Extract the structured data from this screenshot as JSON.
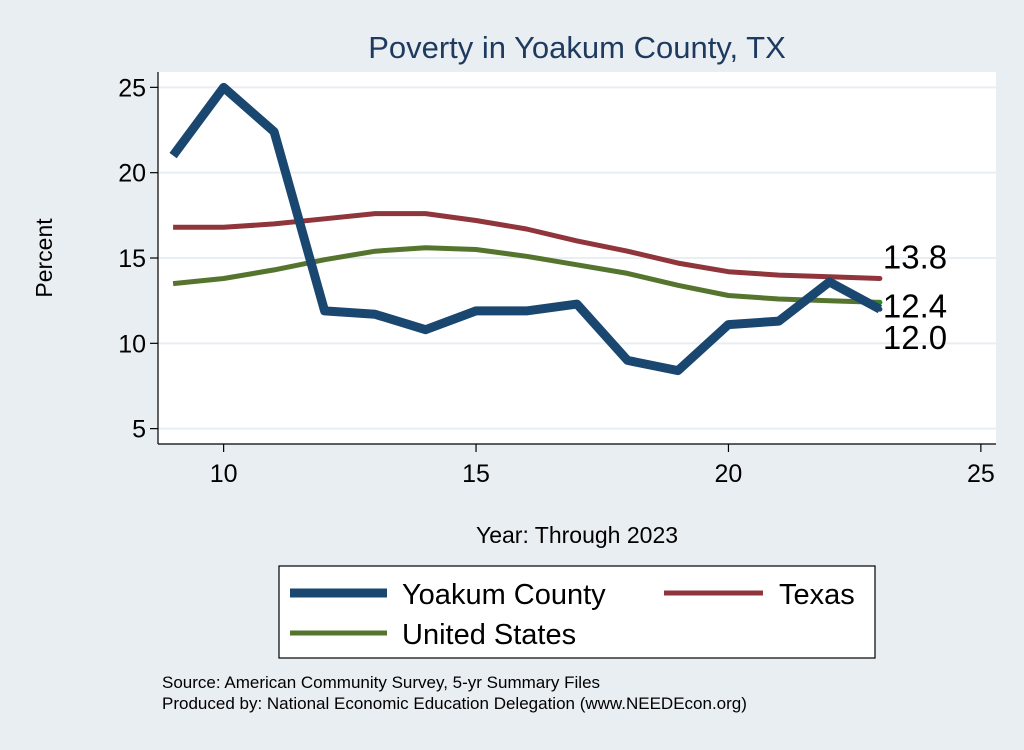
{
  "colors": {
    "background": "#e9eef3",
    "plot_background": "#ffffff",
    "title": "#1f3a5f",
    "text": "#000000",
    "grid": "#e9eef3"
  },
  "chart_data": {
    "type": "line",
    "title": "Poverty in Yoakum County, TX",
    "xlabel": "Year: Through 2023",
    "ylabel": "Percent",
    "xlim": [
      8.7,
      25.3
    ],
    "ylim": [
      4.1,
      25.9
    ],
    "x_ticks": [
      10,
      15,
      20,
      25
    ],
    "y_ticks": [
      5,
      10,
      15,
      20,
      25
    ],
    "grid": true,
    "legend_position": "bottom",
    "series": [
      {
        "name": "Yoakum County",
        "color": "#1a476f",
        "x": [
          9,
          10,
          11,
          12,
          13,
          14,
          15,
          16,
          17,
          18,
          19,
          20,
          21,
          22,
          23
        ],
        "y": [
          21.0,
          25.0,
          22.4,
          11.9,
          11.7,
          10.8,
          11.9,
          11.9,
          12.3,
          9.0,
          8.4,
          11.1,
          11.3,
          13.6,
          12.0
        ]
      },
      {
        "name": "Texas",
        "color": "#90353b",
        "x": [
          9,
          10,
          11,
          12,
          13,
          14,
          15,
          16,
          17,
          18,
          19,
          20,
          21,
          22,
          23
        ],
        "y": [
          16.8,
          16.8,
          17.0,
          17.3,
          17.6,
          17.6,
          17.2,
          16.7,
          16.0,
          15.4,
          14.7,
          14.2,
          14.0,
          13.9,
          13.8
        ]
      },
      {
        "name": "United States",
        "color": "#55752f",
        "x": [
          9,
          10,
          11,
          12,
          13,
          14,
          15,
          16,
          17,
          18,
          19,
          20,
          21,
          22,
          23
        ],
        "y": [
          13.5,
          13.8,
          14.3,
          14.9,
          15.4,
          15.6,
          15.5,
          15.1,
          14.6,
          14.1,
          13.4,
          12.8,
          12.6,
          12.5,
          12.4
        ]
      }
    ],
    "end_labels": [
      "13.8",
      "12.4",
      "12.0"
    ]
  },
  "source_note": {
    "line1": "Source: American Community Survey, 5-yr Summary Files",
    "line2": "Produced by: National Economic Education Delegation (www.NEEDEcon.org)"
  }
}
